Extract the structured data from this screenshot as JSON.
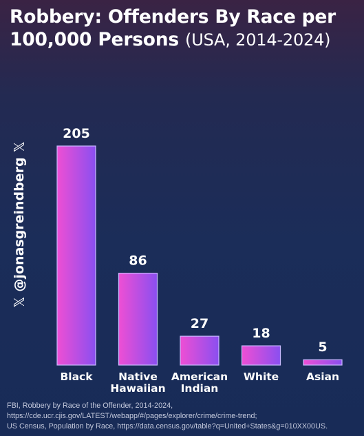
{
  "chart_data": {
    "type": "bar",
    "title": "Robbery: Offenders By Race per 100,000 Persons",
    "subtitle": "(USA, 2014-2024)",
    "categories": [
      [
        "Black"
      ],
      [
        "Native",
        "Hawaiian"
      ],
      [
        "American",
        "Indian"
      ],
      [
        "White"
      ],
      [
        "Asian"
      ]
    ],
    "values": [
      205,
      86,
      27,
      18,
      5
    ],
    "value_labels": [
      "205",
      "86",
      "27",
      "18",
      "5"
    ],
    "ylim": [
      0,
      205
    ],
    "grid": false,
    "legend": "none",
    "bar_gradient": [
      "#ee4fd4",
      "#8a4ff0"
    ],
    "bar_border": "#c9b8ff"
  },
  "watermark": {
    "handle": "@jonasgreindberg",
    "icon": "x-logo-icon"
  },
  "source_lines": [
    "FBI, Robbery by Race of the Offender, 2014-2024,",
    "https://cde.ucr.cjis.gov/LATEST/webapp/#/pages/explorer/crime/crime-trend;",
    "US Census, Population by Race, https://data.census.gov/table?q=United+States&g=010XX00US."
  ]
}
